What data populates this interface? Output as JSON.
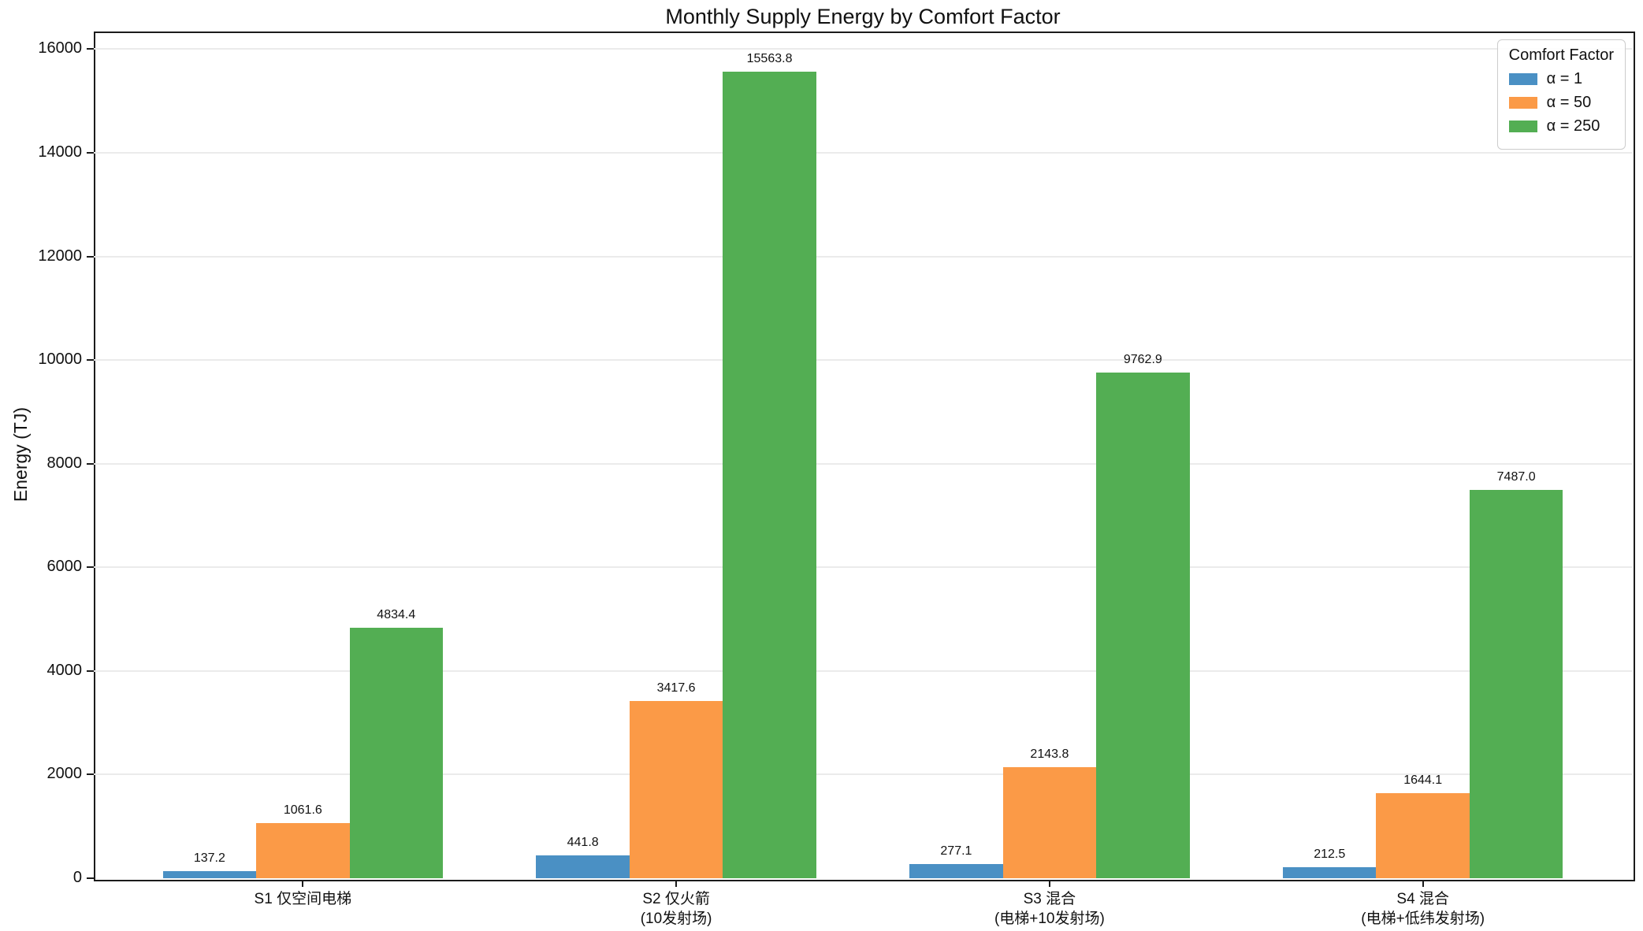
{
  "title": "Monthly Supply Energy by Comfort Factor",
  "ylabel": "Energy (TJ)",
  "legend": {
    "title": "Comfort Factor",
    "entries": [
      {
        "label": "α = 1",
        "color": "#4a90c4"
      },
      {
        "label": "α = 50",
        "color": "#fb9a47"
      },
      {
        "label": "α = 250",
        "color": "#53ae53"
      }
    ]
  },
  "chart_data": {
    "type": "bar",
    "title": "Monthly Supply Energy by Comfort Factor",
    "xlabel": "",
    "ylabel": "Energy (TJ)",
    "ylim": [
      0,
      16342
    ],
    "ytick_step": 2000,
    "yticks": [
      0,
      2000,
      4000,
      6000,
      8000,
      10000,
      12000,
      14000,
      16000
    ],
    "grid": "horizontal",
    "grid_color": "#ebebeb",
    "legend_title": "Comfort Factor",
    "legend_position": "upper right",
    "bar_value_labels": true,
    "categories": [
      "S1 仅空间电梯",
      "S2 仅火箭\n(10发射场)",
      "S3 混合\n(电梯+10发射场)",
      "S4 混合\n(电梯+低纬发射场)"
    ],
    "series": [
      {
        "name": "α = 1",
        "color": "#4a90c4",
        "values": [
          137.2,
          441.8,
          277.1,
          212.5
        ]
      },
      {
        "name": "α = 50",
        "color": "#fb9a47",
        "values": [
          1061.6,
          3417.6,
          2143.8,
          1644.1
        ]
      },
      {
        "name": "α = 250",
        "color": "#53ae53",
        "values": [
          4834.4,
          15563.8,
          9762.9,
          7487.0
        ]
      }
    ]
  }
}
